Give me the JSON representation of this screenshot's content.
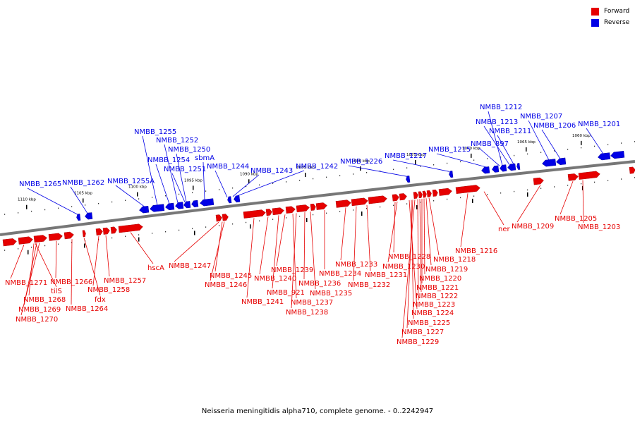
{
  "legend": {
    "forward": {
      "label": "Forward",
      "color": "#e60000"
    },
    "reverse": {
      "label": "Reverse",
      "color": "#0000e6"
    }
  },
  "caption": "Neisseria meningitidis alpha710, complete genome. - 0..2242947",
  "colors": {
    "forward": "#e60000",
    "reverse": "#0000e6",
    "backbone": "#777777",
    "tick": "#000000"
  },
  "tick_labels": [
    "1110 kbp",
    "1105 kbp",
    "1100 kbp",
    "1095 kbp",
    "1090 kbp",
    "1085 kbp",
    "1080 kbp",
    "1075 kbp",
    "1070 kbp",
    "1065 kbp",
    "1060 kbp"
  ],
  "reverse_labels": [
    "NMBB_1265",
    "NMBB_1262",
    "NMBB_1255A",
    "NMBB_1255",
    "NMBB_1254",
    "NMBB_1252",
    "NMBB_1251",
    "NMBB_1250",
    "sbmA",
    "NMBB_1244",
    "NMBB_1243",
    "NMBB_1242",
    "NMBB_1226",
    "NMBB_1217",
    "NMBB_1215",
    "NMBB_897",
    "NMBB_1212",
    "NMBB_1213",
    "NMBB_1211",
    "NMBB_1207",
    "NMBB_1206",
    "NMBB_1201"
  ],
  "forward_labels": [
    "NMBB_1271",
    "tilS",
    "NMBB_1268",
    "NMBB_1269",
    "NMBB_1270",
    "NMBB_1266",
    "NMBB_1264",
    "fdx",
    "NMBB_1258",
    "NMBB_1257",
    "hscA",
    "NMBB_1247",
    "NMBB_1245",
    "NMBB_1246",
    "NMBB_1241",
    "NMBB_1240",
    "NMBB_921",
    "NMBB_1239",
    "NMBB_1237",
    "NMBB_1238",
    "NMBB_1236",
    "NMBB_1235",
    "NMBB_1234",
    "NMBB_1233",
    "NMBB_1232",
    "NMBB_1231",
    "NMBB_1228",
    "NMBB_1230",
    "NMBB_1224",
    "NMBB_1225",
    "NMBB_1227",
    "NMBB_1229",
    "NMBB_1223",
    "NMBB_1222",
    "NMBB_1221",
    "NMBB_1220",
    "NMBB_1219",
    "NMBB_1218",
    "NMBB_1216",
    "ner",
    "NMBB_1209",
    "NMBB_1205",
    "NMBB_1203"
  ]
}
